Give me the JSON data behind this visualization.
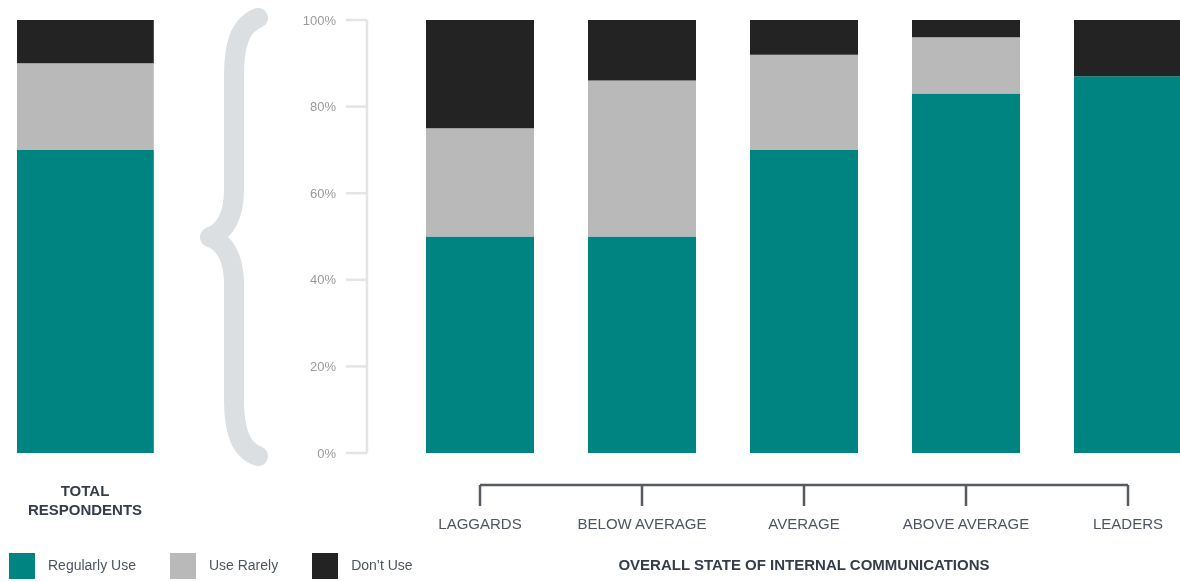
{
  "chart_data": [
    {
      "type": "bar",
      "categories": [
        "TOTAL RESPONDENTS"
      ],
      "stacked": true,
      "series": [
        {
          "color": "#008482",
          "values": [
            70
          ]
        },
        {
          "color": "#b9b9b9",
          "values": [
            20
          ]
        },
        {
          "color": "#232323",
          "values": [
            10
          ]
        }
      ],
      "ylim": [
        0,
        100
      ],
      "tick_labels": "x"
    },
    {
      "type": "bar",
      "categories": [
        "LAGGARDS",
        "BELOW AVERAGE",
        "AVERAGE",
        "ABOVE AVERAGE",
        "LEADERS"
      ],
      "xlabel": "OVERALL STATE OF INTERNAL COMMUNICATIONS",
      "stacked": true,
      "series": [
        {
          "name": "Regularly Use",
          "color": "#008482",
          "values": [
            50,
            50,
            70,
            83,
            87
          ]
        },
        {
          "name": "Use Rarely",
          "color": "#b9b9b9",
          "values": [
            25,
            36,
            22,
            13,
            0
          ]
        },
        {
          "name": "Don’t Use",
          "color": "#232323",
          "values": [
            25,
            14,
            8,
            4,
            13
          ]
        }
      ],
      "ylim": [
        0,
        100
      ],
      "yticks": [
        {
          "value": 0,
          "label": "0%"
        },
        {
          "value": 20,
          "label": "20%"
        },
        {
          "value": 40,
          "label": "40%"
        },
        {
          "value": 60,
          "label": "60%"
        },
        {
          "value": 80,
          "label": "80%"
        },
        {
          "value": 100,
          "label": "100%"
        }
      ],
      "legend": "bottom left"
    }
  ]
}
